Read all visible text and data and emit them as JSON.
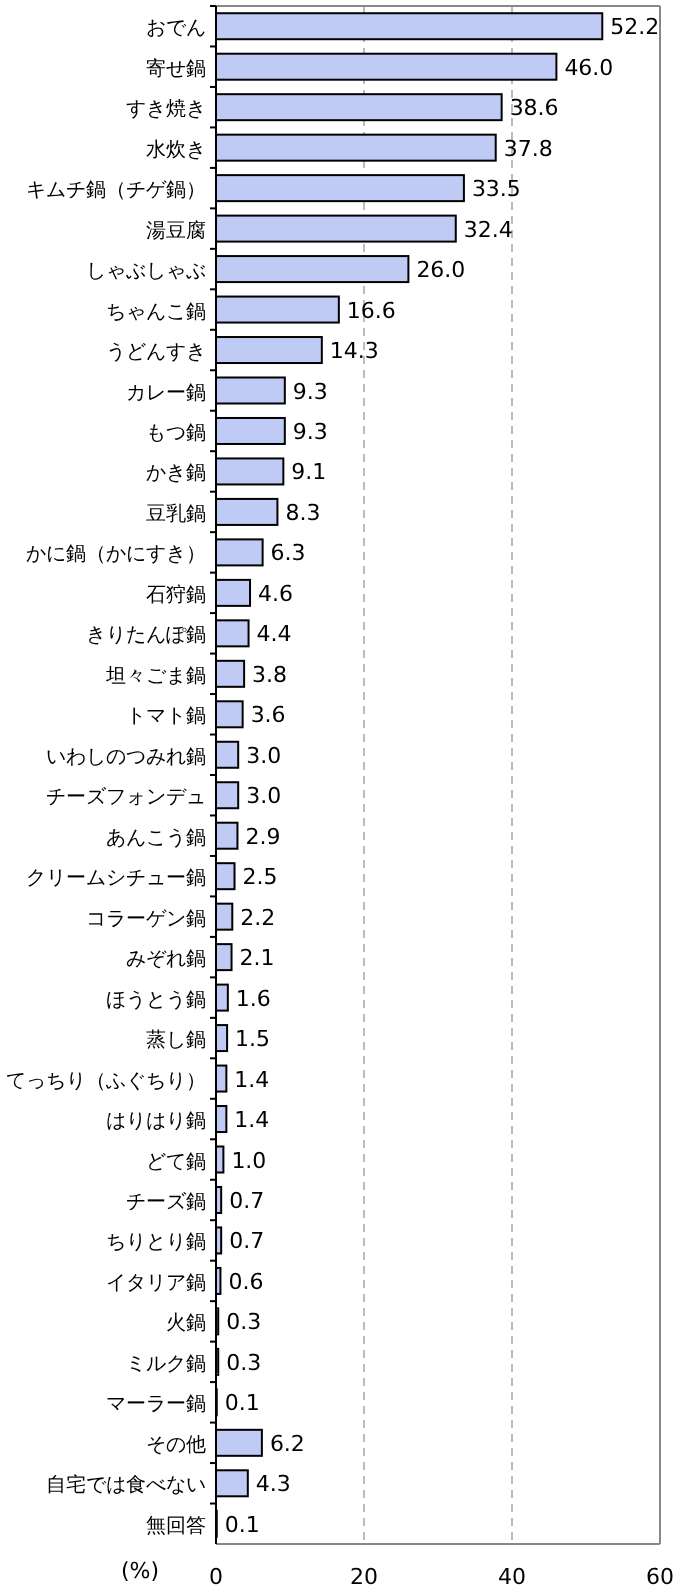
{
  "chart_data": {
    "type": "bar",
    "orientation": "horizontal",
    "xlabel": "(%)",
    "categories": [
      "おでん",
      "寄せ鍋",
      "すき焼き",
      "水炊き",
      "キムチ鍋（チゲ鍋）",
      "湯豆腐",
      "しゃぶしゃぶ",
      "ちゃんこ鍋",
      "うどんすき",
      "カレー鍋",
      "もつ鍋",
      "かき鍋",
      "豆乳鍋",
      "かに鍋（かにすき）",
      "石狩鍋",
      "きりたんぽ鍋",
      "坦々ごま鍋",
      "トマト鍋",
      "いわしのつみれ鍋",
      "チーズフォンデュ",
      "あんこう鍋",
      "クリームシチュー鍋",
      "コラーゲン鍋",
      "みぞれ鍋",
      "ほうとう鍋",
      "蒸し鍋",
      "てっちり（ふぐちり）",
      "はりはり鍋",
      "どて鍋",
      "チーズ鍋",
      "ちりとり鍋",
      "イタリア鍋",
      "火鍋",
      "ミルク鍋",
      "マーラー鍋",
      "その他",
      "自宅では食べない",
      "無回答"
    ],
    "values": [
      52.2,
      46.0,
      38.6,
      37.8,
      33.5,
      32.4,
      26.0,
      16.6,
      14.3,
      9.3,
      9.3,
      9.1,
      8.3,
      6.3,
      4.6,
      4.4,
      3.8,
      3.6,
      3.0,
      3.0,
      2.9,
      2.5,
      2.2,
      2.1,
      1.6,
      1.5,
      1.4,
      1.4,
      1.0,
      0.7,
      0.7,
      0.6,
      0.3,
      0.3,
      0.1,
      6.2,
      4.3,
      0.1
    ],
    "value_labels": [
      "52.2",
      "46.0",
      "38.6",
      "37.8",
      "33.5",
      "32.4",
      "26.0",
      "16.6",
      "14.3",
      "9.3",
      "9.3",
      "9.1",
      "8.3",
      "6.3",
      "4.6",
      "4.4",
      "3.8",
      "3.6",
      "3.0",
      "3.0",
      "2.9",
      "2.5",
      "2.2",
      "2.1",
      "1.6",
      "1.5",
      "1.4",
      "1.4",
      "1.0",
      "0.7",
      "0.7",
      "0.6",
      "0.3",
      "0.3",
      "0.1",
      "6.2",
      "4.3",
      "0.1"
    ],
    "color": "#c0cbf5",
    "xlim": [
      0,
      60
    ],
    "xticks": [
      0,
      20,
      40,
      60
    ],
    "grid": "x"
  }
}
